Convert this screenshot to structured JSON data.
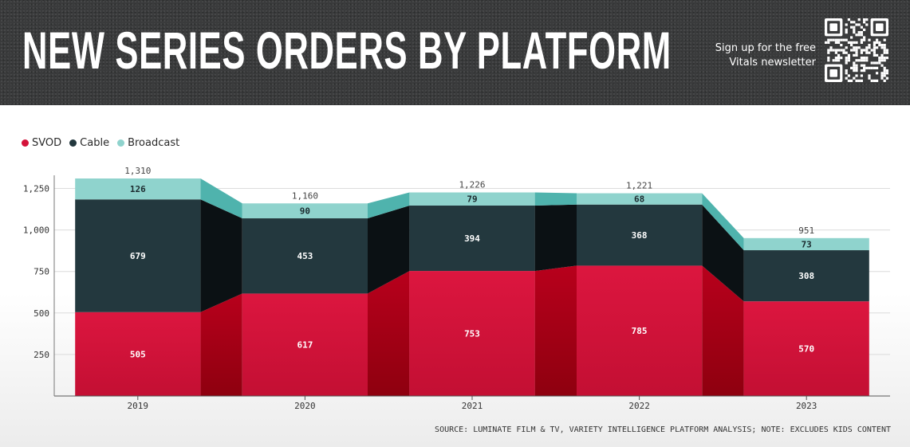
{
  "header": {
    "title": "NEW SERIES ORDERS BY PLATFORM",
    "signup": "Sign up for the free Vitals newsletter",
    "qr_icon": "qr-code-icon"
  },
  "legend": {
    "placement": "top-left",
    "items": [
      {
        "label": "SVOD",
        "color": "#d4123a"
      },
      {
        "label": "Cable",
        "color": "#23383e"
      },
      {
        "label": "Broadcast",
        "color": "#8fd3cd"
      }
    ]
  },
  "chart_data": {
    "type": "bar",
    "stacked": true,
    "title": "NEW SERIES ORDERS BY PLATFORM",
    "xlabel": "",
    "ylabel": "",
    "categories": [
      "2019",
      "2020",
      "2021",
      "2022",
      "2023"
    ],
    "series": [
      {
        "name": "SVOD",
        "values": [
          505,
          617,
          753,
          785,
          570
        ],
        "color": "#d4123a"
      },
      {
        "name": "Cable",
        "values": [
          679,
          453,
          394,
          368,
          308
        ],
        "color": "#23383e"
      },
      {
        "name": "Broadcast",
        "values": [
          126,
          90,
          79,
          68,
          73
        ],
        "color": "#8fd3cd"
      }
    ],
    "totals": [
      "1,310",
      "1,160",
      "1,226",
      "1,221",
      "951"
    ],
    "yticks": [
      250,
      500,
      750,
      1000,
      1250
    ],
    "ytick_labels": [
      "250",
      "500",
      "750",
      "1,000",
      "1,250"
    ],
    "ylim": [
      0,
      1310
    ],
    "grid": true
  },
  "source": "SOURCE: LUMINATE FILM & TV, VARIETY INTELLIGENCE PLATFORM ANALYSIS; NOTE: EXCLUDES KIDS CONTENT"
}
